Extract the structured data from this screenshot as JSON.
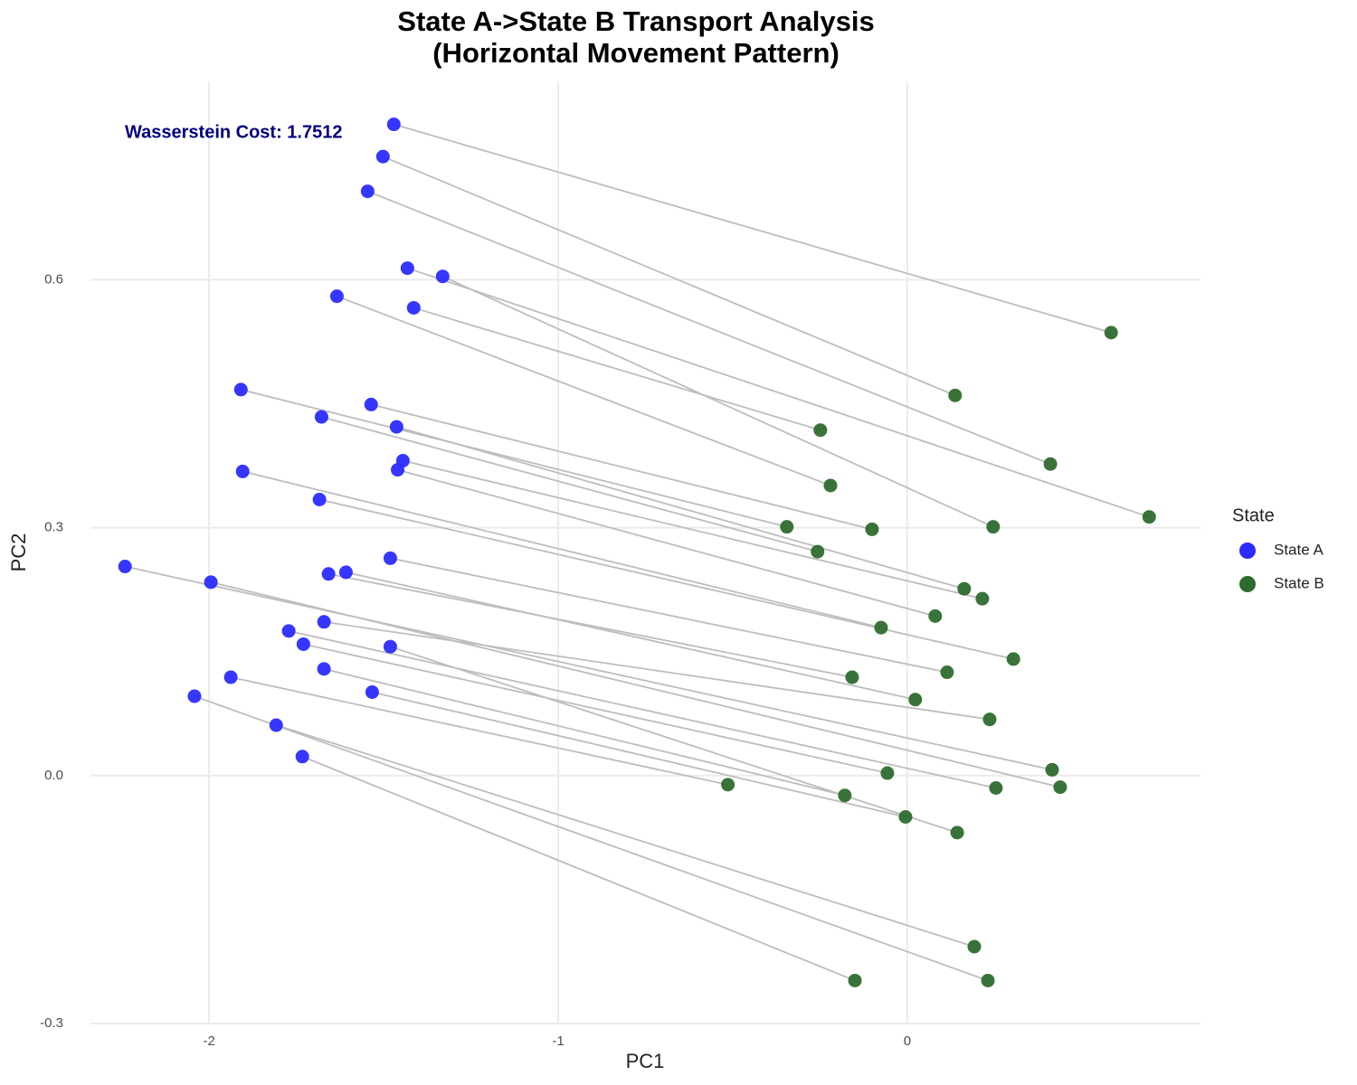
{
  "chart_data": {
    "type": "scatter",
    "title": "State A->State B Transport Analysis",
    "subtitle": "(Horizontal Movement Pattern)",
    "x_label": "PC1",
    "y_label": "PC2",
    "annotation": "Wasserstein Cost: 1.7512",
    "legend_title": "State",
    "legend_position": "right",
    "grid": true,
    "link_color": "#bdbdbd",
    "xlim": [
      -2.34,
      0.84
    ],
    "ylim": [
      -0.3,
      0.84
    ],
    "xticks": [
      -2,
      -1,
      0
    ],
    "yticks": [
      -0.3,
      {
        "value": 0,
        "label": "0.0"
      },
      0.3,
      0.6
    ],
    "series": [
      {
        "name": "State A",
        "color": "#2b2bff",
        "x": [
          -1.471,
          -1.502,
          -1.546,
          -1.432,
          -1.331,
          -1.634,
          -1.414,
          -1.909,
          -1.536,
          -1.678,
          -1.463,
          -1.445,
          -1.46,
          -1.904,
          -1.684,
          -1.481,
          -2.241,
          -1.658,
          -1.608,
          -1.995,
          -1.671,
          -1.772,
          -1.73,
          -1.481,
          -1.938,
          -1.671,
          -1.533,
          -2.042,
          -1.808,
          -1.733
        ],
        "values": [
          0.788,
          0.749,
          0.707,
          0.614,
          0.604,
          0.58,
          0.566,
          0.467,
          0.449,
          0.434,
          0.422,
          0.381,
          0.37,
          0.368,
          0.334,
          0.263,
          0.253,
          0.244,
          0.246,
          0.234,
          0.186,
          0.175,
          0.159,
          0.156,
          0.119,
          0.129,
          0.101,
          0.096,
          0.061,
          0.023
        ]
      },
      {
        "name": "State B",
        "color": "#2e6b2e",
        "x": [
          0.584,
          0.137,
          0.41,
          0.693,
          0.246,
          -0.22,
          -0.249,
          -0.345,
          -0.101,
          -0.257,
          0.163,
          0.215,
          0.08,
          -0.075,
          0.304,
          0.114,
          0.415,
          -0.158,
          0.023,
          0.438,
          0.236,
          0.254,
          -0.057,
          0.143,
          -0.514,
          -0.179,
          -0.005,
          0.231,
          0.192,
          -0.15
        ],
        "values": [
          0.536,
          0.46,
          0.377,
          0.313,
          0.301,
          0.351,
          0.418,
          0.301,
          0.298,
          0.271,
          0.226,
          0.214,
          0.193,
          0.179,
          0.141,
          0.125,
          0.007,
          0.119,
          0.092,
          -0.014,
          0.068,
          -0.015,
          0.003,
          -0.069,
          -0.011,
          -0.024,
          -0.05,
          -0.248,
          -0.207,
          -0.248
        ]
      }
    ]
  }
}
